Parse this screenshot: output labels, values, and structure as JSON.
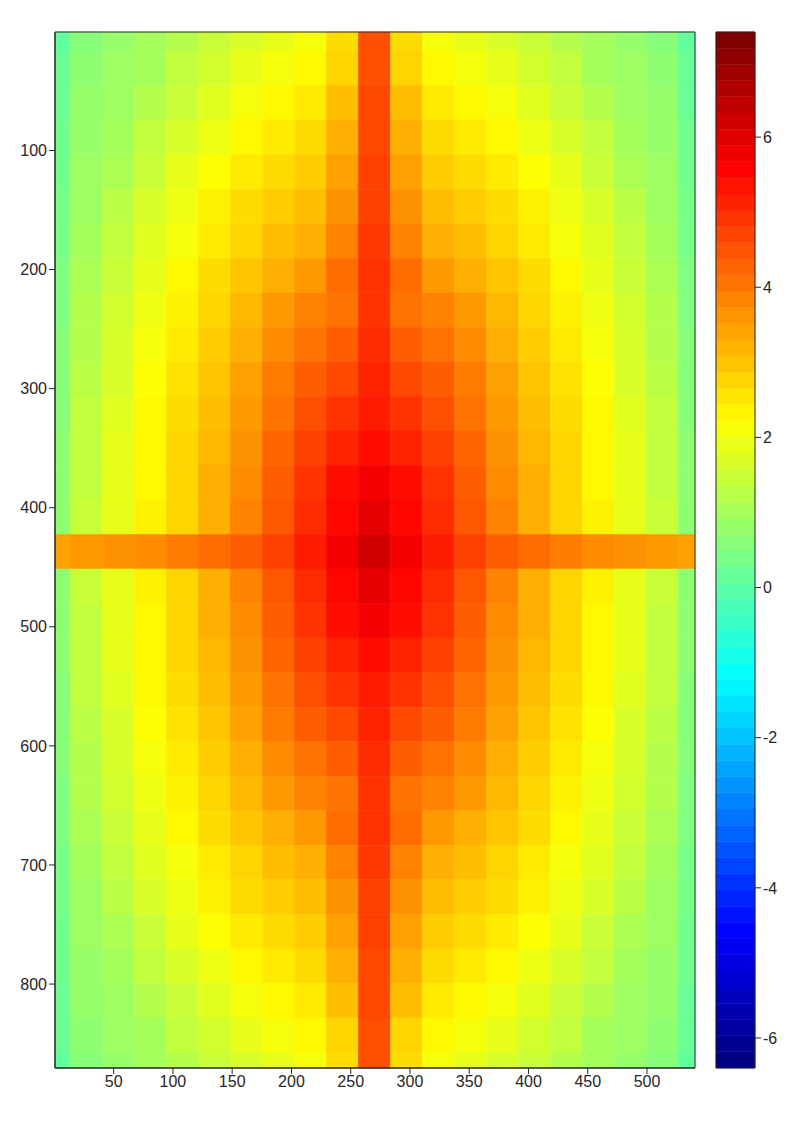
{
  "chart_data": {
    "type": "heatmap",
    "xlim": [
      0.5,
      540.5
    ],
    "ylim": [
      0.5,
      870.5
    ],
    "xticks": [
      50,
      100,
      150,
      200,
      250,
      300,
      350,
      400,
      450,
      500
    ],
    "yticks": [
      100,
      200,
      300,
      400,
      500,
      600,
      700,
      800
    ],
    "x_edges": [
      0.5,
      13.5,
      40.5,
      67.5,
      94.5,
      121.5,
      148.5,
      175.5,
      202.5,
      229.5,
      256.5,
      283.5,
      310.5,
      337.5,
      364.5,
      391.5,
      418.5,
      445.5,
      472.5,
      499.5,
      526.5,
      540.5
    ],
    "y_edges": [
      0.5,
      16.5,
      45.5,
      74.5,
      103.5,
      132.5,
      161.5,
      190.5,
      219.5,
      248.5,
      277.5,
      306.5,
      335.5,
      364.5,
      393.5,
      422.5,
      451.5,
      480.5,
      509.5,
      538.5,
      567.5,
      596.5,
      625.5,
      654.5,
      683.5,
      712.5,
      741.5,
      770.5,
      799.5,
      828.5,
      857.5,
      870.5
    ],
    "cells": [
      [
        0.1,
        0.6,
        0.8,
        1.0,
        1.2,
        1.5,
        1.7,
        1.9,
        2.1,
        2.7,
        4.6,
        2.7,
        2.1,
        1.9,
        1.7,
        1.5,
        1.2,
        1.0,
        0.8,
        0.6,
        0.1
      ],
      [
        0.2,
        0.7,
        0.9,
        1.0,
        1.4,
        1.6,
        1.9,
        2.1,
        2.3,
        2.8,
        4.6,
        2.8,
        2.3,
        2.1,
        1.9,
        1.6,
        1.4,
        1.0,
        0.9,
        0.7,
        0.2
      ],
      [
        0.2,
        0.8,
        0.9,
        1.2,
        1.5,
        1.8,
        2.1,
        2.3,
        2.5,
        3.1,
        4.7,
        3.1,
        2.5,
        2.3,
        2.1,
        1.8,
        1.5,
        1.2,
        0.9,
        0.8,
        0.2
      ],
      [
        0.3,
        0.8,
        1.0,
        1.4,
        1.7,
        2.0,
        2.3,
        2.5,
        2.7,
        3.3,
        4.7,
        3.3,
        2.7,
        2.5,
        2.3,
        2.0,
        1.7,
        1.4,
        1.0,
        0.8,
        0.3
      ],
      [
        0.3,
        0.9,
        1.1,
        1.5,
        1.9,
        2.2,
        2.5,
        2.7,
        2.9,
        3.5,
        4.8,
        3.5,
        2.9,
        2.7,
        2.5,
        2.2,
        1.9,
        1.5,
        1.1,
        0.9,
        0.3
      ],
      [
        0.4,
        0.9,
        1.3,
        1.7,
        2.0,
        2.4,
        2.7,
        2.9,
        3.1,
        3.7,
        4.8,
        3.7,
        3.1,
        2.9,
        2.7,
        2.4,
        2.0,
        1.7,
        1.3,
        0.9,
        0.4
      ],
      [
        0.4,
        1.0,
        1.4,
        1.8,
        2.1,
        2.5,
        2.8,
        3.1,
        3.3,
        3.9,
        4.9,
        3.9,
        3.3,
        3.1,
        2.8,
        2.5,
        2.1,
        1.8,
        1.4,
        1.0,
        0.4
      ],
      [
        0.5,
        1.1,
        1.5,
        1.9,
        2.3,
        2.7,
        3.0,
        3.3,
        3.6,
        4.2,
        5.0,
        4.2,
        3.6,
        3.3,
        3.0,
        2.7,
        2.3,
        1.9,
        1.5,
        1.1,
        0.5
      ],
      [
        0.5,
        1.2,
        1.6,
        2.0,
        2.4,
        2.8,
        3.2,
        3.6,
        3.9,
        4.1,
        5.0,
        4.1,
        3.9,
        3.6,
        3.2,
        2.8,
        2.4,
        2.0,
        1.6,
        1.2,
        0.5
      ],
      [
        0.6,
        1.2,
        1.7,
        2.1,
        2.5,
        2.9,
        3.3,
        3.8,
        4.1,
        4.4,
        5.1,
        4.4,
        4.1,
        3.8,
        3.3,
        2.9,
        2.5,
        2.1,
        1.7,
        1.2,
        0.6
      ],
      [
        0.6,
        1.3,
        1.7,
        2.2,
        2.6,
        3.0,
        3.5,
        4.0,
        4.4,
        4.7,
        5.2,
        4.7,
        4.4,
        4.0,
        3.5,
        3.0,
        2.6,
        2.2,
        1.7,
        1.3,
        0.6
      ],
      [
        0.6,
        1.4,
        1.8,
        2.3,
        2.7,
        3.1,
        3.6,
        4.1,
        4.6,
        5.0,
        5.3,
        5.0,
        4.6,
        4.1,
        3.6,
        3.1,
        2.7,
        2.3,
        1.8,
        1.4,
        0.6
      ],
      [
        0.7,
        1.4,
        1.9,
        2.3,
        2.8,
        3.2,
        3.7,
        4.3,
        4.8,
        5.2,
        5.5,
        5.2,
        4.8,
        4.3,
        3.7,
        3.2,
        2.8,
        2.3,
        1.9,
        1.4,
        0.7
      ],
      [
        0.7,
        1.4,
        1.9,
        2.3,
        2.8,
        3.3,
        3.8,
        4.4,
        5.0,
        5.5,
        5.8,
        5.5,
        5.0,
        4.4,
        3.8,
        3.3,
        2.8,
        2.3,
        1.9,
        1.4,
        0.7
      ],
      [
        0.7,
        1.5,
        1.9,
        2.4,
        2.8,
        3.3,
        3.9,
        4.5,
        5.1,
        5.6,
        6.0,
        5.6,
        5.1,
        4.5,
        3.9,
        3.3,
        2.8,
        2.4,
        1.9,
        1.5,
        0.7
      ],
      [
        3.5,
        3.6,
        3.7,
        3.8,
        4.0,
        4.2,
        4.4,
        4.8,
        5.3,
        5.8,
        6.3,
        5.8,
        5.3,
        4.8,
        4.4,
        4.2,
        4.0,
        3.8,
        3.7,
        3.6,
        3.5
      ],
      [
        0.7,
        1.5,
        1.9,
        2.4,
        2.8,
        3.3,
        3.9,
        4.5,
        5.1,
        5.6,
        6.0,
        5.6,
        5.1,
        4.5,
        3.9,
        3.3,
        2.8,
        2.4,
        1.9,
        1.5,
        0.7
      ],
      [
        0.7,
        1.4,
        1.9,
        2.3,
        2.8,
        3.3,
        3.8,
        4.4,
        5.0,
        5.5,
        5.8,
        5.5,
        5.0,
        4.4,
        3.8,
        3.3,
        2.8,
        2.3,
        1.9,
        1.4,
        0.7
      ],
      [
        0.7,
        1.4,
        1.9,
        2.3,
        2.8,
        3.2,
        3.7,
        4.3,
        4.8,
        5.2,
        5.5,
        5.2,
        4.8,
        4.3,
        3.7,
        3.2,
        2.8,
        2.3,
        1.9,
        1.4,
        0.7
      ],
      [
        0.6,
        1.4,
        1.8,
        2.3,
        2.7,
        3.1,
        3.6,
        4.1,
        4.6,
        5.0,
        5.3,
        5.0,
        4.6,
        4.1,
        3.6,
        3.1,
        2.7,
        2.3,
        1.8,
        1.4,
        0.6
      ],
      [
        0.6,
        1.3,
        1.7,
        2.2,
        2.6,
        3.0,
        3.5,
        4.0,
        4.4,
        4.7,
        5.2,
        4.7,
        4.4,
        4.0,
        3.5,
        3.0,
        2.6,
        2.2,
        1.7,
        1.3,
        0.6
      ],
      [
        0.6,
        1.2,
        1.7,
        2.1,
        2.5,
        2.9,
        3.3,
        3.8,
        4.1,
        4.4,
        5.1,
        4.4,
        4.1,
        3.8,
        3.3,
        2.9,
        2.5,
        2.1,
        1.7,
        1.2,
        0.6
      ],
      [
        0.5,
        1.2,
        1.6,
        2.0,
        2.4,
        2.8,
        3.2,
        3.6,
        3.9,
        4.1,
        5.0,
        4.1,
        3.9,
        3.6,
        3.2,
        2.8,
        2.4,
        2.0,
        1.6,
        1.2,
        0.5
      ],
      [
        0.5,
        1.1,
        1.5,
        1.9,
        2.3,
        2.7,
        3.0,
        3.3,
        3.6,
        4.2,
        5.0,
        4.2,
        3.6,
        3.3,
        3.0,
        2.7,
        2.3,
        1.9,
        1.5,
        1.1,
        0.5
      ],
      [
        0.4,
        1.0,
        1.4,
        1.8,
        2.1,
        2.5,
        2.8,
        3.1,
        3.3,
        3.9,
        4.9,
        3.9,
        3.3,
        3.1,
        2.8,
        2.5,
        2.1,
        1.8,
        1.4,
        1.0,
        0.4
      ],
      [
        0.4,
        0.9,
        1.3,
        1.7,
        2.0,
        2.4,
        2.7,
        2.9,
        3.1,
        3.7,
        4.8,
        3.7,
        3.1,
        2.9,
        2.7,
        2.4,
        2.0,
        1.7,
        1.3,
        0.9,
        0.4
      ],
      [
        0.3,
        0.9,
        1.1,
        1.5,
        1.9,
        2.2,
        2.5,
        2.7,
        2.9,
        3.5,
        4.8,
        3.5,
        2.9,
        2.7,
        2.5,
        2.2,
        1.9,
        1.5,
        1.1,
        0.9,
        0.3
      ],
      [
        0.3,
        0.8,
        1.0,
        1.4,
        1.7,
        2.0,
        2.3,
        2.5,
        2.7,
        3.3,
        4.7,
        3.3,
        2.7,
        2.5,
        2.3,
        2.0,
        1.7,
        1.4,
        1.0,
        0.8,
        0.3
      ],
      [
        0.2,
        0.8,
        0.9,
        1.2,
        1.5,
        1.8,
        2.1,
        2.3,
        2.5,
        3.1,
        4.7,
        3.1,
        2.5,
        2.3,
        2.1,
        1.8,
        1.5,
        1.2,
        0.9,
        0.8,
        0.2
      ],
      [
        0.2,
        0.7,
        0.9,
        1.0,
        1.4,
        1.6,
        1.9,
        2.1,
        2.3,
        2.8,
        4.6,
        2.8,
        2.3,
        2.1,
        1.9,
        1.6,
        1.4,
        1.0,
        0.9,
        0.7,
        0.2
      ],
      [
        0.1,
        0.6,
        0.8,
        1.0,
        1.2,
        1.5,
        1.7,
        1.9,
        2.1,
        2.7,
        4.6,
        2.7,
        2.1,
        1.9,
        1.7,
        1.5,
        1.2,
        1.0,
        0.8,
        0.6,
        0.1
      ]
    ],
    "colorbar": {
      "range": [
        -6.4,
        7.4
      ],
      "ticks": [
        -6,
        -4,
        -2,
        0,
        2,
        4,
        6
      ]
    }
  }
}
